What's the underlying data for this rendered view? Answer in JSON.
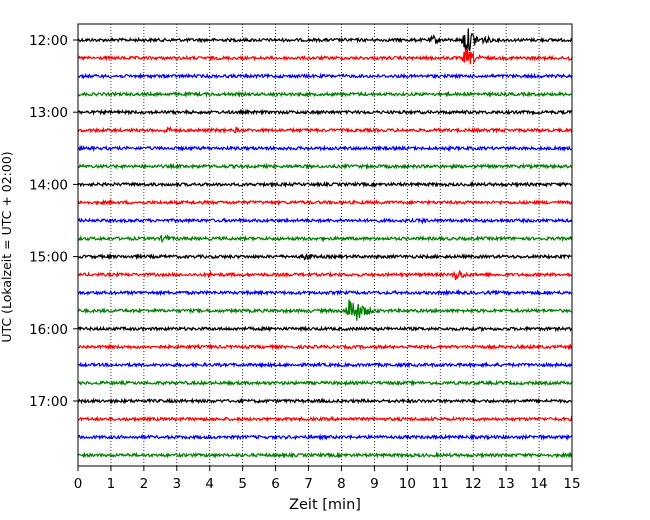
{
  "chart_data": {
    "type": "line",
    "title": "",
    "xlabel": "Zeit  [min]",
    "ylabel": "UTC (Lokalzeit = UTC + 02:00)",
    "xlim": [
      0,
      15
    ],
    "x_ticks": [
      0,
      1,
      2,
      3,
      4,
      5,
      6,
      7,
      8,
      9,
      10,
      11,
      12,
      13,
      14,
      15
    ],
    "grid_x": true,
    "trace_interval_min": 15,
    "y_tick_labels": [
      "12:00",
      "13:00",
      "14:00",
      "15:00",
      "16:00",
      "17:00"
    ],
    "trace_colors": [
      "#000000",
      "#ff0000",
      "#0000ff",
      "#008000"
    ],
    "traces": [
      {
        "start": "12:00",
        "events": [
          {
            "x": 10.8,
            "amp": 5
          },
          {
            "x": 11.8,
            "amp": 14
          },
          {
            "x": 12.4,
            "amp": 4
          }
        ]
      },
      {
        "start": "12:15",
        "events": [
          {
            "x": 11.8,
            "amp": 10
          },
          {
            "x": 14.9,
            "amp": 3
          }
        ]
      },
      {
        "start": "12:30",
        "events": []
      },
      {
        "start": "12:45",
        "events": []
      },
      {
        "start": "13:00",
        "events": []
      },
      {
        "start": "13:15",
        "events": [
          {
            "x": 2.7,
            "amp": 4
          },
          {
            "x": 4.8,
            "amp": 3
          }
        ]
      },
      {
        "start": "13:30",
        "events": []
      },
      {
        "start": "13:45",
        "events": []
      },
      {
        "start": "14:00",
        "events": []
      },
      {
        "start": "14:15",
        "events": []
      },
      {
        "start": "14:30",
        "events": [
          {
            "x": 10.5,
            "amp": 3
          }
        ]
      },
      {
        "start": "14:45",
        "events": [
          {
            "x": 2.6,
            "amp": 5
          }
        ]
      },
      {
        "start": "15:00",
        "events": [
          {
            "x": 6.9,
            "amp": 5
          }
        ]
      },
      {
        "start": "15:15",
        "events": [
          {
            "x": 4.0,
            "amp": 3
          },
          {
            "x": 11.5,
            "amp": 7
          }
        ]
      },
      {
        "start": "15:30",
        "events": []
      },
      {
        "start": "15:45",
        "events": [
          {
            "x": 8.3,
            "amp": 16
          }
        ]
      },
      {
        "start": "16:00",
        "events": []
      },
      {
        "start": "16:15",
        "events": [
          {
            "x": 12.0,
            "amp": 3
          }
        ]
      },
      {
        "start": "16:30",
        "events": [
          {
            "x": 7.3,
            "amp": 2
          }
        ]
      },
      {
        "start": "16:45",
        "events": [
          {
            "x": 5.6,
            "amp": 2
          }
        ]
      },
      {
        "start": "17:00",
        "events": []
      },
      {
        "start": "17:15",
        "events": []
      },
      {
        "start": "17:30",
        "events": [
          {
            "x": 14.0,
            "amp": 3
          }
        ]
      },
      {
        "start": "17:45",
        "events": []
      }
    ]
  }
}
